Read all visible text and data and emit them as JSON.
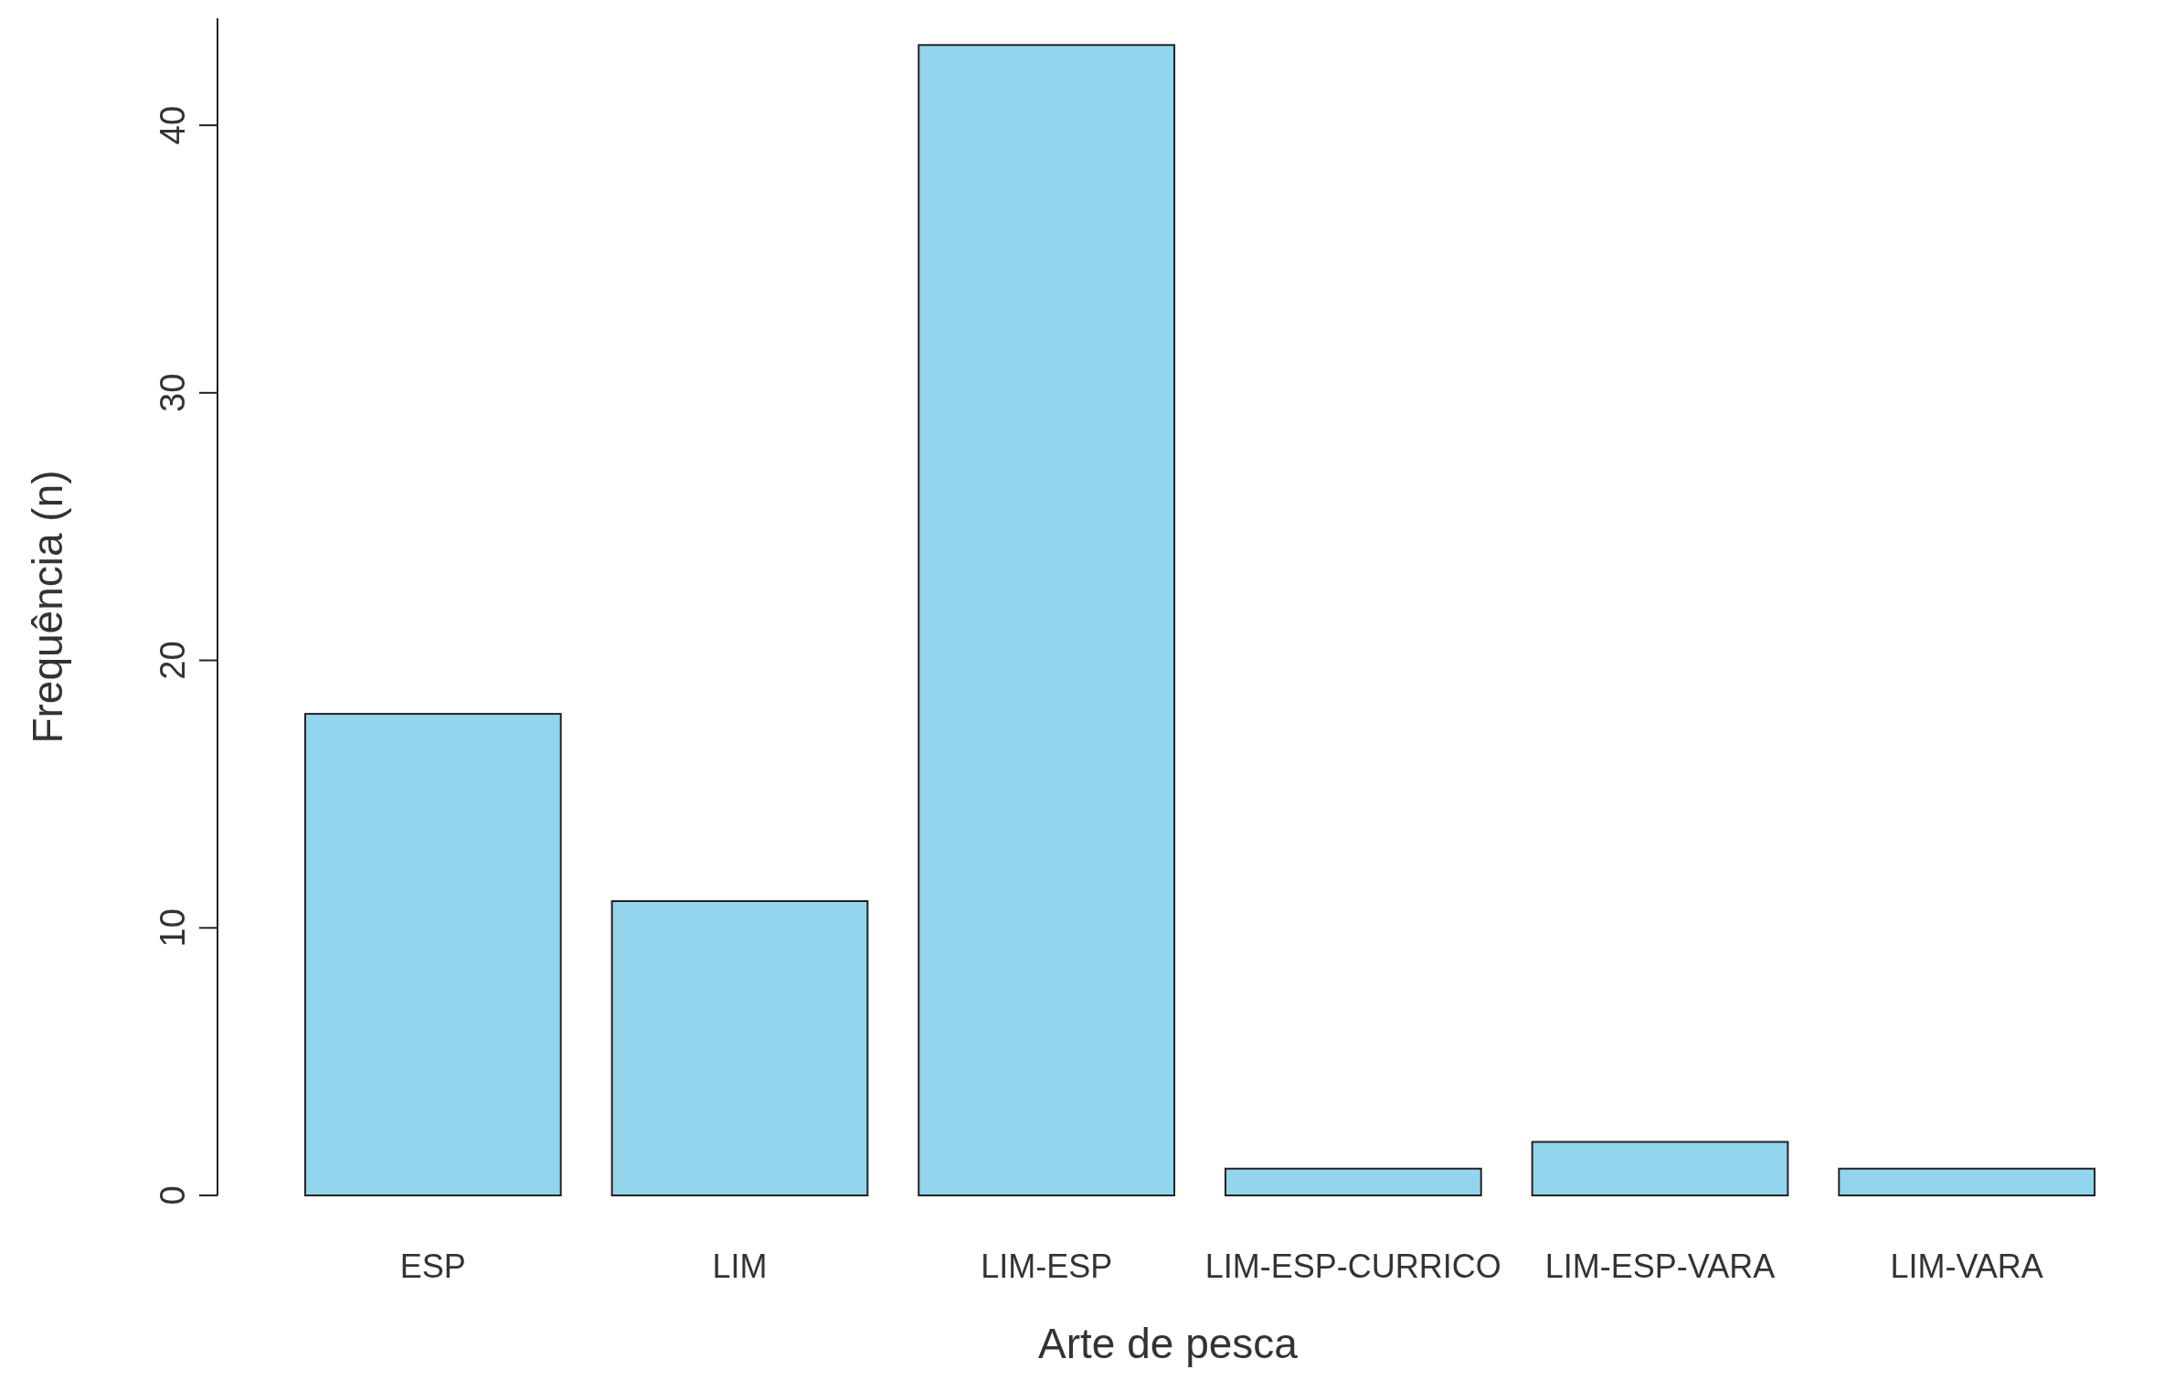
{
  "chart_data": {
    "type": "bar",
    "xlabel": "Arte de pesca",
    "ylabel": "Frequência (n)",
    "categories": [
      "ESP",
      "LIM",
      "LIM-ESP",
      "LIM-ESP-CURRICO",
      "LIM-ESP-VARA",
      "LIM-VARA"
    ],
    "values": [
      18,
      11,
      43,
      1,
      2,
      1
    ],
    "color": "#93d5ec",
    "ylim": [
      0,
      44
    ],
    "yticks": [
      0,
      10,
      20,
      30,
      40
    ],
    "grid": false
  }
}
